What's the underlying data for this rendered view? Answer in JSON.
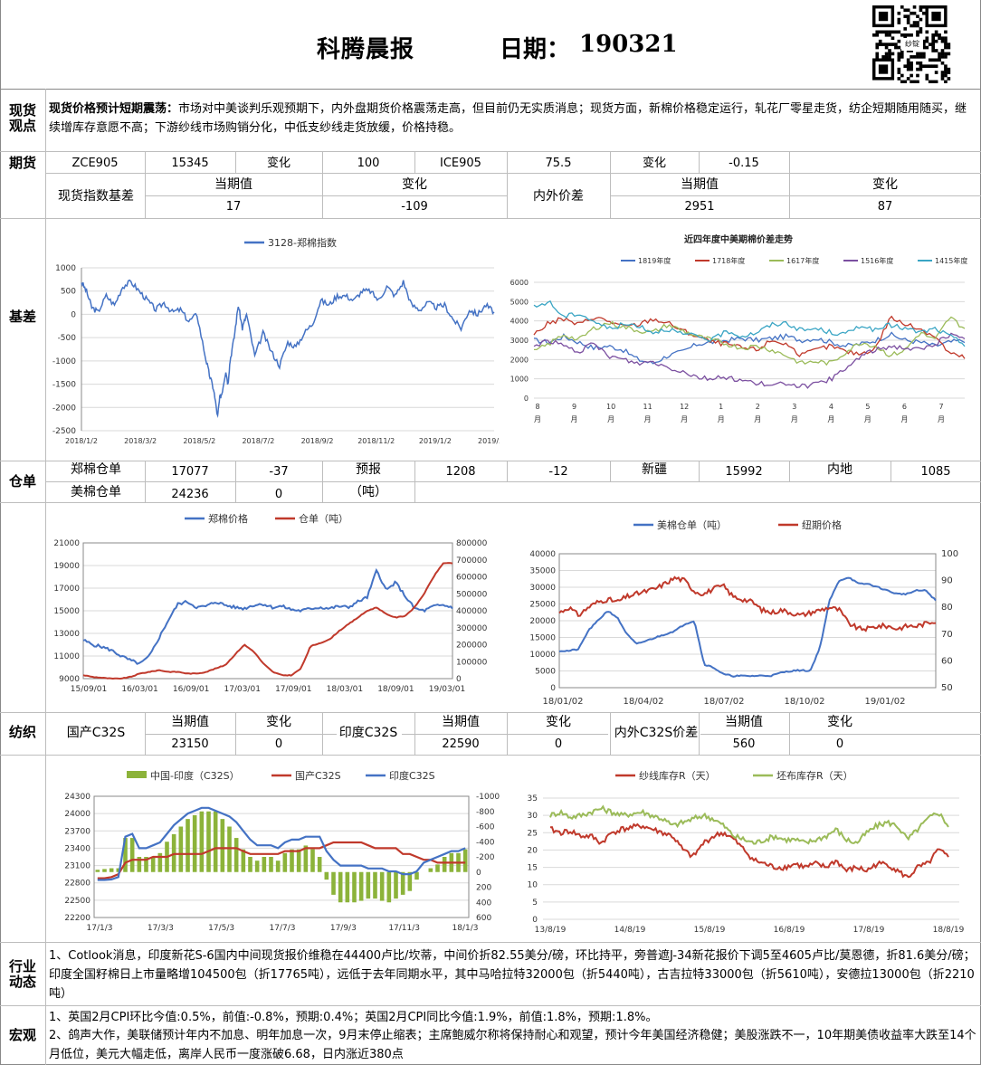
{
  "header": {
    "title": "科腾晨报",
    "date_label": "日期：",
    "date_value": "190321",
    "qr_caption": "纱锭"
  },
  "sections": {
    "xianhuo": "现货观点",
    "qihuo": "期货",
    "jicha": "基差",
    "cangdan": "仓单",
    "fangzhi": "纺织",
    "hangye": "行业动态",
    "hongguan": "宏观"
  },
  "spot_view": {
    "bold": "现货价格预计短期震荡：",
    "text": "市场对中美谈判乐观预期下，内外盘期货价格震荡走高，但目前仍无实质消息；现货方面，新棉价格稳定运行，轧花厂零星走货，纺企短期随用随买，继续增库存意愿不高；下游纱线市场购销分化，中低支纱线走货放缓，价格持稳。"
  },
  "futures": {
    "row1": [
      "ZCE905",
      "15345",
      "变化",
      "100",
      "ICE905",
      "75.5",
      "变化",
      "-0.15"
    ],
    "basis_label": "现货指数基差",
    "cur_label": "当期值",
    "chg_label": "变化",
    "basis_cur": "17",
    "basis_chg": "-109",
    "spread_label": "内外价差",
    "spread_cur_label": "当期值",
    "spread_chg_label": "变化",
    "spread_cur": "2951",
    "spread_chg": "87"
  },
  "warehouse": {
    "zz_label": "郑棉仓单",
    "zz_val": "17077",
    "zz_chg": "-37",
    "forecast_label": "预报",
    "forecast_unit": "（吨）",
    "forecast_val": "1208",
    "forecast_chg": "-12",
    "xj_label": "新疆",
    "xj_val": "15992",
    "nd_label": "内地",
    "nd_val": "1085",
    "us_label": "美棉仓单",
    "us_val": "24236",
    "us_chg": "0"
  },
  "textile": {
    "cn_label": "国产C32S",
    "cur_label": "当期值",
    "chg_label": "变化",
    "cn_cur": "23150",
    "cn_chg": "0",
    "in_label": "印度C32S",
    "in_cur": "22590",
    "in_chg": "0",
    "diff_label": "内外C32S价差",
    "diff_cur": "560",
    "diff_chg": "0"
  },
  "industry": "1、Cotlook消息，印度新花S-6国内中间现货报价维稳在44400卢比/坎蒂，中间价折82.55美分/磅，环比持平，旁普遮J-34新花报价下调5至4605卢比/莫恩德，折81.6美分/磅；印度全国籽棉日上市量略增104500包（折17765吨），远低于去年同期水平，其中马哈拉特32000包（折5440吨），古吉拉特33000包（折5610吨），安德拉13000包（折2210吨）",
  "macro": [
    "1、英国2月CPI环比今值:0.5%，前值:-0.8%，预期:0.4%；英国2月CPI同比今值:1.9%，前值:1.8%，预期:1.8%。",
    "2、鸽声大作，美联储预计年内不加息、明年加息一次，9月末停止缩表；主席鲍威尔称将保持耐心和观望，预计今年美国经济稳健；美股涨跌不一，10年期美债收益率大跌至14个月低位，美元大幅走低，离岸人民币一度涨破6.68，日内涨近380点"
  ],
  "colors": {
    "blue": "#4472c4",
    "red": "#c0392b",
    "green": "#8cb33a",
    "purple": "#7b4fa0",
    "cyan": "#3aa5c4",
    "lightgreen": "#9bbb59"
  },
  "chart_data": [
    {
      "type": "line",
      "title": "3128-郑棉指数",
      "series": [
        {
          "name": "3128-郑棉指数"
        }
      ],
      "yticks": [
        "1000",
        "500",
        "0",
        "-500",
        "-1000",
        "-1500",
        "-2000",
        "-2500"
      ],
      "xticks": [
        "2018/1/2",
        "2018/3/2",
        "2018/5/2",
        "2018/7/2",
        "2018/9/2",
        "2018/11/2",
        "2019/1/2",
        "2019/3/2"
      ],
      "ylim": [
        -2500,
        1000
      ],
      "color": "#4472c4",
      "x": [
        0,
        0.012,
        0.025,
        0.04,
        0.06,
        0.08,
        0.1,
        0.12,
        0.14,
        0.16,
        0.18,
        0.2,
        0.22,
        0.24,
        0.26,
        0.28,
        0.3,
        0.31,
        0.32,
        0.33,
        0.335,
        0.34,
        0.35,
        0.355,
        0.36,
        0.37,
        0.38,
        0.39,
        0.4,
        0.42,
        0.44,
        0.46,
        0.48,
        0.5,
        0.52,
        0.54,
        0.56,
        0.58,
        0.6,
        0.62,
        0.64,
        0.66,
        0.68,
        0.7,
        0.72,
        0.74,
        0.76,
        0.78,
        0.8,
        0.82,
        0.84,
        0.86,
        0.88,
        0.9,
        0.92,
        0.94,
        0.96,
        0.98,
        1.0
      ],
      "y": [
        700,
        500,
        150,
        50,
        400,
        200,
        600,
        700,
        500,
        300,
        100,
        250,
        50,
        100,
        -150,
        0,
        -900,
        -1300,
        -1600,
        -2200,
        -1800,
        -1700,
        -1200,
        -1500,
        -1000,
        -500,
        200,
        -300,
        0,
        -900,
        -400,
        -800,
        -1100,
        -600,
        -700,
        -400,
        -200,
        300,
        200,
        400,
        400,
        300,
        500,
        500,
        300,
        600,
        400,
        700,
        200,
        100,
        250,
        150,
        200,
        -100,
        -300,
        100,
        0,
        200,
        50
      ]
    },
    {
      "type": "line",
      "title": "近四年度中美期棉价差走势",
      "legend": [
        "1819年度",
        "1718年度",
        "1617年度",
        "1516年度",
        "1415年度"
      ],
      "yticks": [
        "6000",
        "5000",
        "4000",
        "3000",
        "2000",
        "1000",
        "0"
      ],
      "xticks": [
        "8",
        "9",
        "10",
        "11",
        "12",
        "1",
        "2",
        "3",
        "4",
        "5",
        "6",
        "7"
      ],
      "xunit": "月",
      "ylim": [
        0,
        6000
      ],
      "series": [
        {
          "name": "1819年度",
          "color": "#4472c4",
          "values": [
            3000,
            2900,
            3200,
            2900,
            2600,
            2700,
            2500,
            2000,
            1800,
            2200,
            2400,
            2800,
            2900,
            3000,
            3100,
            3000,
            3100,
            3200,
            3000,
            3100,
            2900,
            2700,
            2800,
            3000,
            3300,
            3000,
            2900,
            2700,
            2900,
            3000
          ]
        },
        {
          "name": "1718年度",
          "color": "#c0392b",
          "values": [
            3300,
            3900,
            4100,
            3800,
            4200,
            4000,
            3700,
            3800,
            4100,
            3900,
            3500,
            3200,
            2900,
            2800,
            2600,
            2500,
            3000,
            2800,
            2200,
            2500,
            2700,
            2400,
            2300,
            2600,
            4200,
            3800,
            3600,
            3200,
            2300,
            2100
          ]
        },
        {
          "name": "1617年度",
          "color": "#9bbb59",
          "values": [
            2400,
            2800,
            3300,
            3000,
            3600,
            3900,
            3700,
            3500,
            3400,
            3800,
            3500,
            3200,
            3000,
            2800,
            2600,
            2700,
            2500,
            2200,
            1800,
            1900,
            1800,
            2400,
            2900,
            2700,
            2200,
            2500,
            3400,
            3000,
            4200,
            3600
          ]
        },
        {
          "name": "1516年度",
          "color": "#7b4fa0",
          "values": [
            2700,
            3000,
            2700,
            2400,
            2800,
            2200,
            2000,
            1800,
            1900,
            1600,
            1400,
            1100,
            1000,
            1100,
            900,
            800,
            600,
            800,
            600,
            700,
            1000,
            1500,
            2200,
            2500,
            2700,
            2600,
            2500,
            2800,
            3300,
            3000
          ]
        },
        {
          "name": "1415年度",
          "color": "#3aa5c4",
          "values": [
            4700,
            5000,
            4200,
            4400,
            4000,
            3600,
            3800,
            3800,
            3400,
            3600,
            3300,
            3200,
            3000,
            3500,
            3200,
            3400,
            3800,
            3900,
            3500,
            3600,
            3400,
            3300,
            3800,
            3500,
            3800,
            3600,
            3400,
            3600,
            3200,
            2800
          ]
        }
      ]
    },
    {
      "type": "line",
      "legend": [
        "郑棉价格",
        "仓单（吨）"
      ],
      "yticks": [
        "21000",
        "19000",
        "17000",
        "15000",
        "13000",
        "11000",
        "9000"
      ],
      "y2ticks": [
        "800000",
        "700000",
        "600000",
        "500000",
        "400000",
        "300000",
        "200000",
        "100000",
        "0"
      ],
      "xticks": [
        "15/09/01",
        "16/03/01",
        "16/09/01",
        "17/03/01",
        "17/09/01",
        "18/03/01",
        "18/09/01",
        "19/03/01"
      ],
      "ylim": [
        9000,
        21000
      ],
      "y2lim": [
        0,
        800000
      ],
      "series": [
        {
          "name": "郑棉价格",
          "color": "#4472c4",
          "axis": "left",
          "values": [
            12400,
            12000,
            11800,
            11500,
            11000,
            10600,
            10300,
            11000,
            12600,
            14200,
            15600,
            15800,
            15300,
            15400,
            15800,
            15500,
            15300,
            15200,
            15500,
            15600,
            15300,
            15400,
            15100,
            15000,
            15200,
            15300,
            15200,
            15400,
            15300,
            15800,
            16200,
            18600,
            16800,
            17500,
            16300,
            15200,
            15000,
            15400,
            15500,
            15300
          ]
        },
        {
          "name": "仓单（吨）",
          "color": "#c0392b",
          "axis": "right",
          "values": [
            20000,
            10000,
            5000,
            0,
            0,
            10000,
            30000,
            40000,
            50000,
            40000,
            40000,
            30000,
            30000,
            40000,
            60000,
            80000,
            140000,
            200000,
            160000,
            90000,
            40000,
            20000,
            20000,
            60000,
            190000,
            210000,
            230000,
            280000,
            320000,
            360000,
            400000,
            420000,
            380000,
            360000,
            370000,
            420000,
            500000,
            600000,
            680000,
            680000
          ]
        }
      ]
    },
    {
      "type": "line",
      "legend": [
        "美棉仓单（吨）",
        "纽期价格"
      ],
      "yticks": [
        "40000",
        "35000",
        "30000",
        "25000",
        "20000",
        "15000",
        "10000",
        "5000",
        "0"
      ],
      "y2ticks": [
        "100",
        "90",
        "80",
        "70",
        "60",
        "50"
      ],
      "xticks": [
        "18/01/02",
        "18/04/02",
        "18/07/02",
        "18/10/02",
        "19/01/02"
      ],
      "ylim": [
        0,
        40000
      ],
      "y2lim": [
        50,
        100
      ],
      "series": [
        {
          "name": "美棉仓单（吨）",
          "color": "#4472c4",
          "axis": "left",
          "values": [
            11000,
            11000,
            11500,
            17000,
            20000,
            23000,
            21000,
            16000,
            13000,
            14000,
            15000,
            16000,
            17000,
            19000,
            20000,
            7000,
            6000,
            4000,
            3500,
            3500,
            3500,
            3600,
            3600,
            4500,
            5000,
            5200,
            5000,
            12000,
            26000,
            32000,
            33000,
            31000,
            31000,
            30000,
            29000,
            28000,
            28000,
            29000,
            29000,
            26000
          ]
        },
        {
          "name": "纽期价格",
          "color": "#c0392b",
          "axis": "right",
          "values": [
            78,
            80,
            77,
            80,
            82,
            83,
            82,
            84,
            85,
            86,
            87,
            89,
            91,
            90,
            86,
            85,
            87,
            88,
            84,
            83,
            82,
            79,
            78,
            79,
            78,
            77,
            78,
            79,
            80,
            79,
            74,
            72,
            72,
            73,
            73,
            72,
            73,
            73,
            74,
            75
          ]
        }
      ]
    },
    {
      "type": "bar+line",
      "legend": [
        "中国-印度（C32S）",
        "国产C32S",
        "印度C32S"
      ],
      "yticks": [
        "24300",
        "24000",
        "23700",
        "23400",
        "23100",
        "22800",
        "22500",
        "22200"
      ],
      "y2ticks": [
        "-1000",
        "-800",
        "-600",
        "-400",
        "-200",
        "0",
        "200",
        "400",
        "600"
      ],
      "xticks": [
        "17/1/3",
        "17/3/3",
        "17/5/3",
        "17/7/3",
        "17/9/3",
        "17/11/3",
        "18/1/3"
      ],
      "ylim": [
        22200,
        24300
      ],
      "y2lim": [
        -1000,
        600
      ],
      "series": [
        {
          "name": "中国-印度（C32S）",
          "color": "#8cb33a",
          "axis": "right",
          "type": "bar",
          "values": [
            -30,
            -40,
            -50,
            -50,
            -450,
            -450,
            -200,
            -200,
            -200,
            -250,
            -400,
            -500,
            -600,
            -700,
            -750,
            -800,
            -800,
            -800,
            -700,
            -600,
            -450,
            -300,
            -200,
            -150,
            -200,
            -200,
            -150,
            -250,
            -300,
            -300,
            -350,
            -300,
            -200,
            100,
            300,
            400,
            400,
            400,
            380,
            350,
            350,
            380,
            400,
            350,
            300,
            250,
            100,
            0,
            -50,
            -100,
            -200,
            -250,
            -250,
            -300
          ]
        },
        {
          "name": "国产C32S",
          "color": "#c0392b",
          "axis": "left",
          "type": "line",
          "values": [
            22880,
            22880,
            22900,
            22950,
            23150,
            23200,
            23200,
            23200,
            23250,
            23250,
            23250,
            23300,
            23300,
            23300,
            23300,
            23300,
            23350,
            23400,
            23400,
            23400,
            23400,
            23350,
            23300,
            23300,
            23300,
            23300,
            23300,
            23350,
            23350,
            23350,
            23400,
            23400,
            23400,
            23450,
            23500,
            23500,
            23500,
            23500,
            23500,
            23450,
            23400,
            23400,
            23400,
            23400,
            23300,
            23300,
            23250,
            23200,
            23200,
            23150,
            23150,
            23150,
            23150,
            23150
          ]
        },
        {
          "name": "印度C32S",
          "color": "#4472c4",
          "axis": "left",
          "type": "line",
          "values": [
            22850,
            22850,
            22860,
            22900,
            23600,
            23650,
            23400,
            23400,
            23450,
            23500,
            23650,
            23800,
            23900,
            24000,
            24050,
            24100,
            24100,
            24050,
            24000,
            23950,
            23850,
            23700,
            23550,
            23450,
            23450,
            23450,
            23400,
            23500,
            23550,
            23550,
            23600,
            23600,
            23600,
            23350,
            23200,
            23100,
            23100,
            23100,
            23100,
            23050,
            23050,
            23050,
            23000,
            23000,
            22950,
            22950,
            23000,
            23150,
            23200,
            23250,
            23300,
            23350,
            23350,
            23400
          ]
        }
      ]
    },
    {
      "type": "line",
      "legend": [
        "纱线库存R（天）",
        "坯布库存R（天）"
      ],
      "yticks": [
        "35",
        "30",
        "25",
        "20",
        "15",
        "10",
        "5",
        "0"
      ],
      "xticks": [
        "13/8/19",
        "14/8/19",
        "15/8/19",
        "16/8/19",
        "17/8/19",
        "18/8/19"
      ],
      "ylim": [
        0,
        35
      ],
      "series": [
        {
          "name": "纱线库存R（天）",
          "color": "#c0392b",
          "values": [
            26,
            25,
            25.5,
            24,
            24,
            22,
            25,
            26,
            26.5,
            27,
            26,
            25,
            24,
            20,
            18,
            22,
            24,
            25,
            23,
            20,
            17,
            16,
            15,
            15,
            16,
            15,
            16,
            15,
            17,
            14,
            15,
            14,
            16,
            16,
            14,
            12,
            15,
            16,
            20,
            18
          ]
        },
        {
          "name": "坯布库存R（天）",
          "color": "#9bbb59",
          "values": [
            30,
            31,
            29.5,
            30,
            31,
            32,
            31,
            30,
            30.5,
            31,
            30,
            29,
            27,
            28,
            29,
            30,
            29,
            27,
            24,
            23,
            22,
            23,
            24,
            23,
            23,
            22,
            23,
            24,
            26,
            23,
            22,
            25,
            27,
            28,
            27,
            23,
            26,
            29,
            31,
            27
          ]
        }
      ]
    }
  ]
}
